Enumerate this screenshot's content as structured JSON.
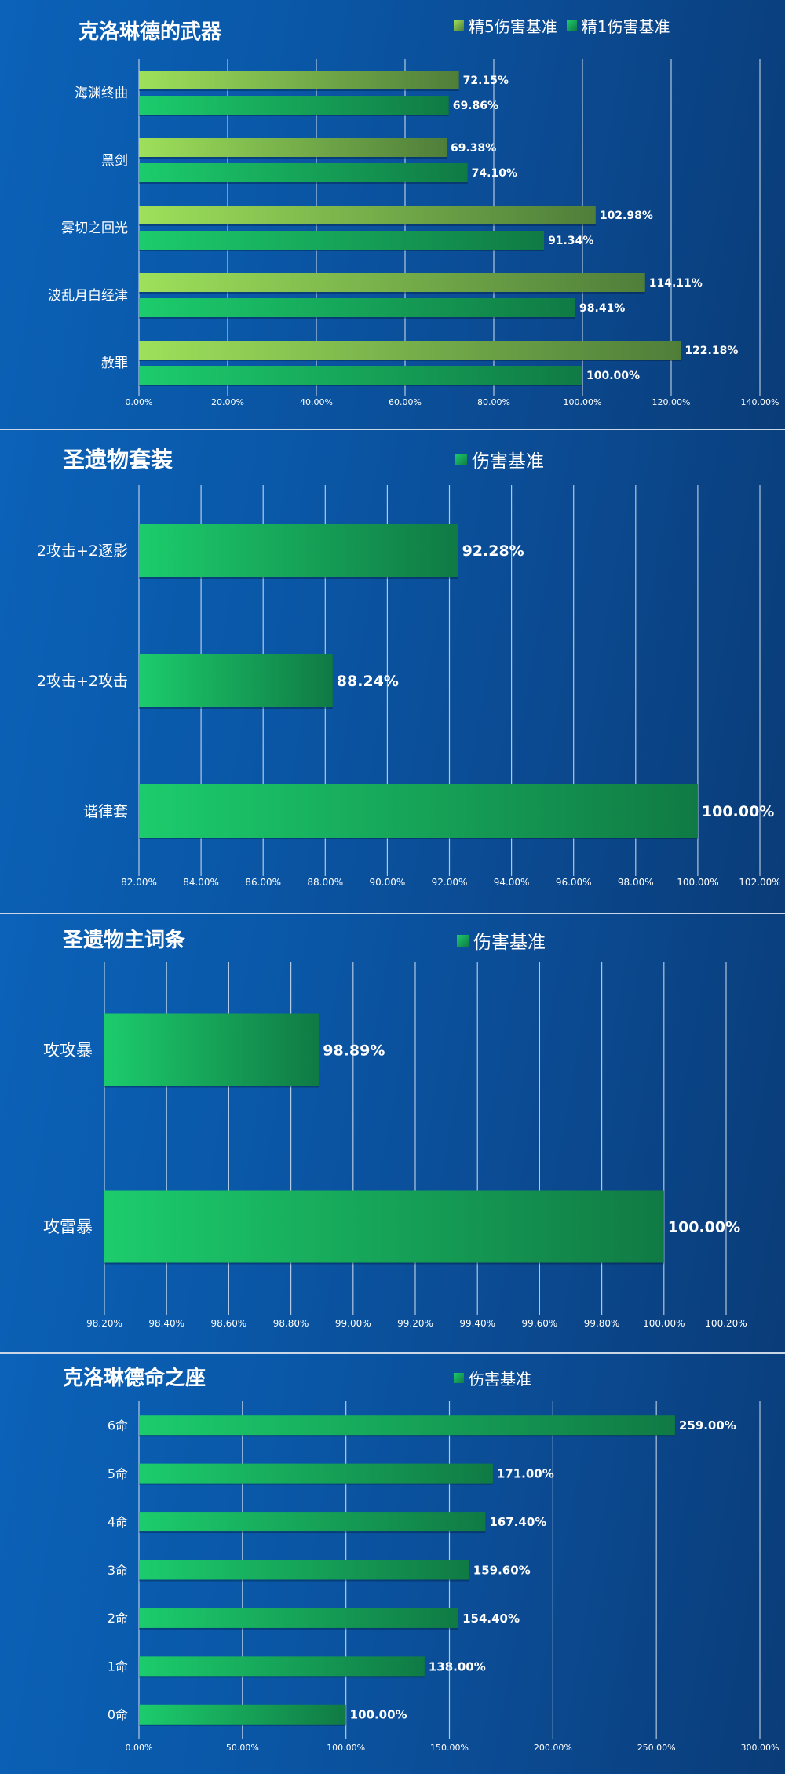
{
  "colors": {
    "light_green": "#9ee05a",
    "dark_olive": "#4f7e3a",
    "green": "#1ccc6c",
    "dark_green": "#107a44"
  },
  "chart_data": [
    {
      "type": "bar",
      "orientation": "horizontal",
      "title": "克洛琳德的武器",
      "categories": [
        "海渊终曲",
        "黑剑",
        "雾切之回光",
        "波乱月白经津",
        "赦罪"
      ],
      "series": [
        {
          "name": "精5伤害基准",
          "values": [
            72.15,
            69.38,
            102.98,
            114.11,
            122.18
          ],
          "labels": [
            "72.15%",
            "69.38%",
            "102.98%",
            "114.11%",
            "122.18%"
          ]
        },
        {
          "name": "精1伤害基准",
          "values": [
            69.86,
            74.1,
            91.34,
            98.41,
            100.0
          ],
          "labels": [
            "69.86%",
            "74.10%",
            "91.34%",
            "98.41%",
            "100.00%"
          ]
        }
      ],
      "xlim": [
        0,
        140
      ],
      "ticks": [
        0,
        20,
        40,
        60,
        80,
        100,
        120,
        140
      ],
      "tick_labels": [
        "0.00%",
        "20.00%",
        "40.00%",
        "60.00%",
        "80.00%",
        "100.00%",
        "120.00%",
        "140.00%"
      ],
      "grid": true,
      "legend": "top-right"
    },
    {
      "type": "bar",
      "orientation": "horizontal",
      "title": "圣遗物套装",
      "categories": [
        "2攻击+2逐影",
        "2攻击+2攻击",
        "谐律套"
      ],
      "series": [
        {
          "name": "伤害基准",
          "values": [
            92.28,
            88.24,
            100.0
          ],
          "labels": [
            "92.28%",
            "88.24%",
            "100.00%"
          ]
        }
      ],
      "xlim": [
        82,
        102
      ],
      "ticks": [
        82,
        84,
        86,
        88,
        90,
        92,
        94,
        96,
        98,
        100,
        102
      ],
      "tick_labels": [
        "82.00%",
        "84.00%",
        "86.00%",
        "88.00%",
        "90.00%",
        "92.00%",
        "94.00%",
        "96.00%",
        "98.00%",
        "100.00%",
        "102.00%"
      ],
      "grid": true,
      "legend": "top-center"
    },
    {
      "type": "bar",
      "orientation": "horizontal",
      "title": "圣遗物主词条",
      "categories": [
        "攻攻暴",
        "攻雷暴"
      ],
      "series": [
        {
          "name": "伤害基准",
          "values": [
            98.89,
            100.0
          ],
          "labels": [
            "98.89%",
            "100.00%"
          ]
        }
      ],
      "xlim": [
        98.2,
        100.2
      ],
      "ticks": [
        98.2,
        98.4,
        98.6,
        98.8,
        99.0,
        99.2,
        99.4,
        99.6,
        99.8,
        100.0,
        100.2
      ],
      "tick_labels": [
        "98.20%",
        "98.40%",
        "98.60%",
        "98.80%",
        "99.00%",
        "99.20%",
        "99.40%",
        "99.60%",
        "99.80%",
        "100.00%",
        "100.20%"
      ],
      "grid": true,
      "legend": "top-center"
    },
    {
      "type": "bar",
      "orientation": "horizontal",
      "title": "克洛琳德命之座",
      "categories": [
        "6命",
        "5命",
        "4命",
        "3命",
        "2命",
        "1命",
        "0命"
      ],
      "series": [
        {
          "name": "伤害基准",
          "values": [
            259.0,
            171.0,
            167.4,
            159.6,
            154.4,
            138.0,
            100.0
          ],
          "labels": [
            "259.00%",
            "171.00%",
            "167.40%",
            "159.60%",
            "154.40%",
            "138.00%",
            "100.00%"
          ]
        }
      ],
      "xlim": [
        0,
        300
      ],
      "ticks": [
        0,
        50,
        100,
        150,
        200,
        250,
        300
      ],
      "tick_labels": [
        "0.00%",
        "50.00%",
        "100.00%",
        "150.00%",
        "200.00%",
        "250.00%",
        "300.00%"
      ],
      "grid": true,
      "legend": "top-center"
    }
  ]
}
